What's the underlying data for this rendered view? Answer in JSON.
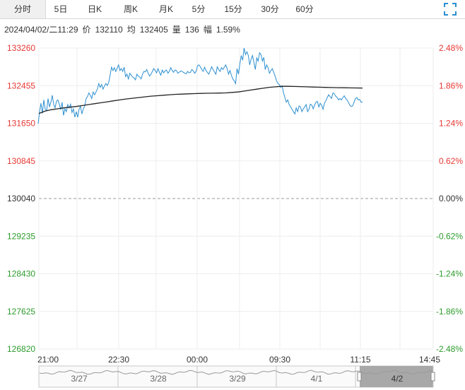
{
  "tabs": [
    {
      "label": "分时",
      "active": true
    },
    {
      "label": "5日",
      "active": false
    },
    {
      "label": "日K",
      "active": false
    },
    {
      "label": "周K",
      "active": false
    },
    {
      "label": "月K",
      "active": false
    },
    {
      "label": "5分",
      "active": false
    },
    {
      "label": "15分",
      "active": false
    },
    {
      "label": "30分",
      "active": false
    },
    {
      "label": "60分",
      "active": false
    }
  ],
  "fullscreen_icon": "expand-icon",
  "info": {
    "datetime": "2024/04/02/二11:29",
    "price_label": "价",
    "price": "132110",
    "avg_label": "均",
    "avg": "132405",
    "volume_label": "量",
    "volume": "136",
    "change_label": "幅",
    "change": "1.59%"
  },
  "colors": {
    "up": "#e53935",
    "down": "#2e9b2e",
    "flat": "#333333",
    "price_line": "#2b8fd0",
    "avg_line": "#222222",
    "grid": "#eeeeee",
    "ref_line": "#999999"
  },
  "chart_data": {
    "type": "line",
    "x_ticks": [
      "21:00",
      "22:30",
      "00:00",
      "09:30",
      "11:15",
      "14:45"
    ],
    "y_left_ticks": [
      "133260",
      "132455",
      "131650",
      "130845",
      "130040",
      "129235",
      "128430",
      "127625",
      "126820"
    ],
    "y_right_ticks": [
      "2.48%",
      "1.86%",
      "1.24%",
      "0.62%",
      "0.00%",
      "-0.62%",
      "-1.24%",
      "-1.86%",
      "-2.48%"
    ],
    "ylim": [
      126820,
      133260
    ],
    "prev_close": 130040,
    "grid": true,
    "series": [
      {
        "role": "price",
        "values": [
          131640,
          131900,
          132080,
          131860,
          132150,
          131950,
          131920,
          132180,
          132000,
          132100,
          132250,
          132050,
          131980,
          132120,
          132150,
          132060,
          131940,
          132100,
          131820,
          131960,
          131900,
          132050,
          131980,
          132060,
          131880,
          131960,
          131780,
          131900,
          131780,
          131950,
          132010,
          131850,
          131960,
          132020,
          132180,
          132220,
          132300,
          132250,
          132180,
          132320,
          132260,
          132320,
          132380,
          132500,
          132420,
          132480,
          132380,
          132450,
          132500,
          132460,
          132520,
          132680,
          132850,
          132780,
          132840,
          132760,
          132830,
          132900,
          132780,
          132820,
          132760,
          132850,
          132650,
          132700,
          132600,
          132720,
          132680,
          132640,
          132620,
          132580,
          132700,
          132660,
          132640,
          132600,
          132700,
          132760,
          132750,
          132800,
          132720,
          132660,
          132700,
          132760,
          132820,
          132780,
          132730,
          132820,
          132740,
          132680,
          132790,
          132730,
          132770,
          132790,
          132720,
          132760,
          132840,
          132780,
          132740,
          132790,
          132780,
          132720,
          132740,
          132770,
          132760,
          132740,
          132720,
          132710,
          132760,
          132730,
          132740,
          132800,
          132770,
          132720,
          132760,
          132880,
          132900,
          132860,
          132800,
          132760,
          132850,
          132780,
          132740,
          132700,
          132780,
          132860,
          132800,
          132750,
          132700,
          132860,
          132800,
          132760,
          132840,
          132800,
          132850,
          132900,
          132820,
          132700,
          132780,
          132680,
          132600,
          132560,
          132500,
          132820,
          132700,
          132920,
          133100,
          133000,
          133260,
          133120,
          133180,
          133100,
          132900,
          133020,
          133100,
          132950,
          132800,
          133050,
          132980,
          133160,
          133120,
          132980,
          133060,
          132800,
          132900,
          132840,
          132720,
          132780,
          132820,
          132740,
          132660,
          132560,
          132500,
          132480,
          132420,
          132450,
          132300,
          132200,
          132100,
          132150,
          132050,
          132000,
          131950,
          131900,
          131850,
          131980,
          131900,
          132020,
          132000,
          131900,
          131960,
          132000,
          132050,
          131900,
          131950,
          132060,
          132040,
          131960,
          132040,
          132100,
          132120,
          132000,
          132080,
          132040,
          131950,
          132080,
          132130,
          132200,
          132260,
          132220,
          132180,
          132300,
          132280,
          132230,
          132200,
          132150,
          132180,
          132150,
          132200,
          132240,
          132180,
          132150,
          132100,
          132040,
          132010,
          132020,
          132100,
          132180,
          132200,
          132150,
          132160,
          132100,
          132110
        ]
      },
      {
        "role": "average",
        "values": [
          131860,
          131910,
          131940,
          131960,
          131980,
          131995,
          132010,
          132030,
          132050,
          132070,
          132090,
          132110,
          132130,
          132150,
          132170,
          132185,
          132200,
          132215,
          132230,
          132240,
          132250,
          132260,
          132270,
          132275,
          132280,
          132285,
          132290,
          132292,
          132294,
          132297,
          132300,
          132310,
          132320,
          132340,
          132360,
          132380,
          132400,
          132420,
          132430,
          132440,
          132440,
          132438,
          132435,
          132430,
          132425,
          132422,
          132418,
          132415,
          132412,
          132410,
          132408,
          132406,
          132405
        ]
      }
    ]
  },
  "navigator": {
    "date_labels": [
      "3/27",
      "3/28",
      "3/29",
      "4/1",
      "4/2"
    ]
  }
}
